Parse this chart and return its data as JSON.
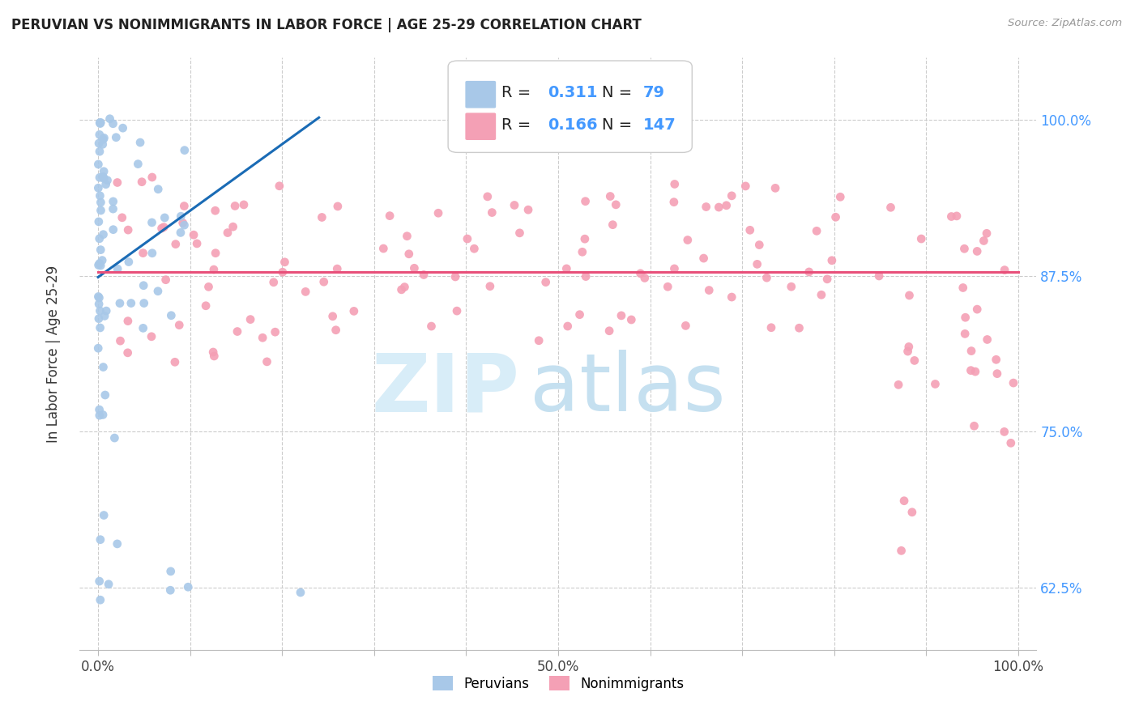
{
  "title": "PERUVIAN VS NONIMMIGRANTS IN LABOR FORCE | AGE 25-29 CORRELATION CHART",
  "source": "Source: ZipAtlas.com",
  "ylabel": "In Labor Force | Age 25-29",
  "xlim": [
    -0.02,
    1.02
  ],
  "ylim": [
    0.575,
    1.05
  ],
  "x_tick_positions": [
    0.0,
    0.1,
    0.2,
    0.3,
    0.4,
    0.5,
    0.6,
    0.7,
    0.8,
    0.9,
    1.0
  ],
  "x_tick_labels": [
    "0.0%",
    "",
    "",
    "",
    "",
    "50.0%",
    "",
    "",
    "",
    "",
    "100.0%"
  ],
  "y_tick_positions": [
    0.625,
    0.75,
    0.875,
    1.0
  ],
  "y_tick_labels": [
    "62.5%",
    "75.0%",
    "87.5%",
    "100.0%"
  ],
  "peruvian_R": 0.311,
  "peruvian_N": 79,
  "nonimmigrant_R": 0.166,
  "nonimmigrant_N": 147,
  "peruvian_color": "#a8c8e8",
  "nonimmigrant_color": "#f4a0b5",
  "peruvian_line_color": "#1a6bb5",
  "nonimmigrant_line_color": "#e8507a",
  "blue_text_color": "#4499ff",
  "legend_label_peruvian": "Peruvians",
  "legend_label_nonimmigrant": "Nonimmigrants",
  "peru_line_x0": 0.0,
  "peru_line_y0": 0.874,
  "peru_line_x1": 0.24,
  "peru_line_y1": 1.002,
  "nonimm_line_x0": 0.0,
  "nonimm_line_y0": 0.878,
  "nonimm_line_x1": 1.0,
  "nonimm_line_y1": 0.878
}
